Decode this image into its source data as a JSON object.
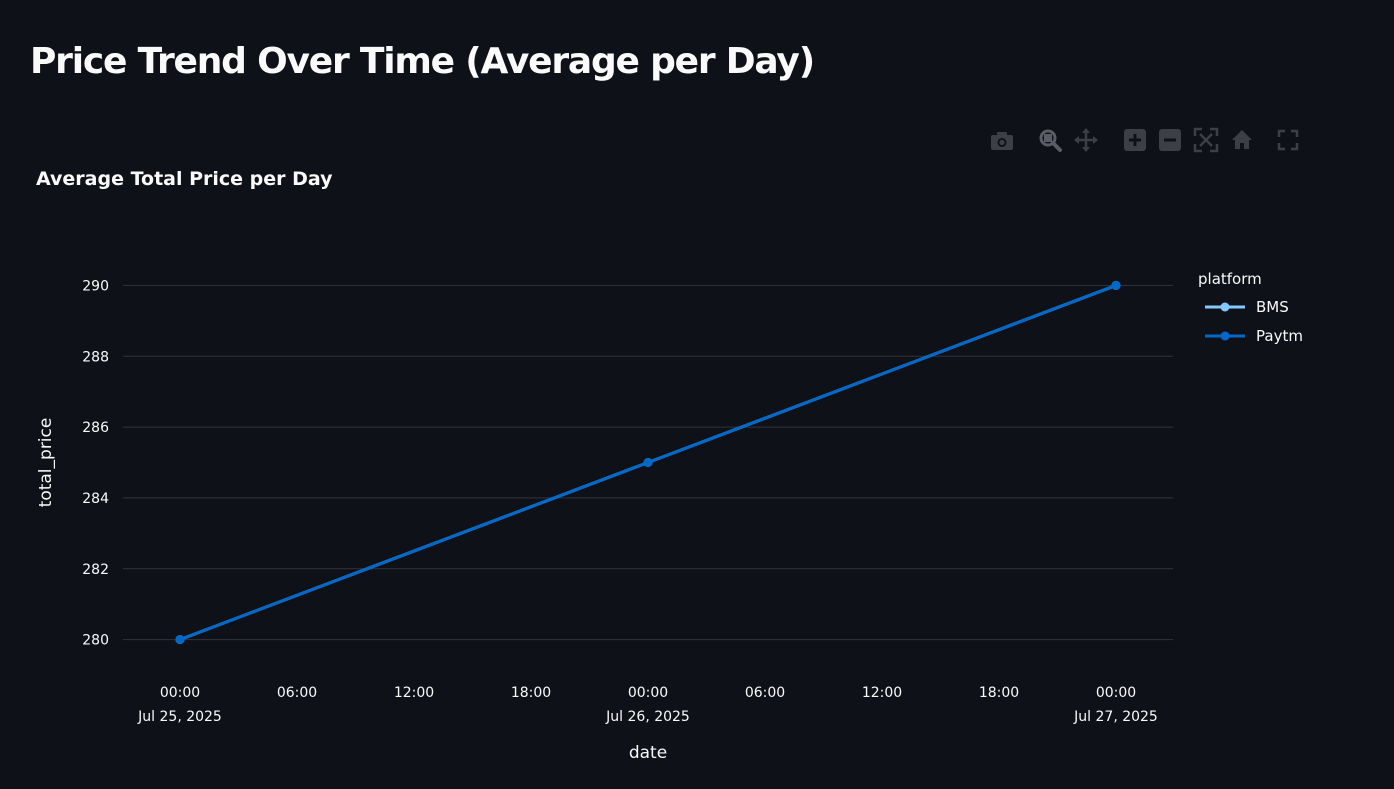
{
  "page": {
    "title": "Price Trend Over Time (Average per Day)"
  },
  "modebar": {
    "icons": [
      "camera-icon",
      "zoom-icon",
      "pan-icon",
      "zoom-in-icon",
      "zoom-out-icon",
      "autoscale-icon",
      "home-icon",
      "fullscreen-icon"
    ]
  },
  "chart_data": {
    "type": "line",
    "title": "Average Total Price per Day",
    "xlabel": "date",
    "ylabel": "total_price",
    "x": [
      "2025-07-25 00:00",
      "2025-07-26 00:00",
      "2025-07-27 00:00"
    ],
    "x_range": [
      "2025-07-25 00:00",
      "2025-07-27 00:00"
    ],
    "ylim": [
      279.0,
      291.0
    ],
    "y_ticks": [
      280,
      282,
      284,
      286,
      288,
      290
    ],
    "x_ticks": [
      {
        "value": "2025-07-25 00:00",
        "label": "00:00",
        "sublabel": "Jul 25, 2025"
      },
      {
        "value": "2025-07-25 06:00",
        "label": "06:00",
        "sublabel": ""
      },
      {
        "value": "2025-07-25 12:00",
        "label": "12:00",
        "sublabel": ""
      },
      {
        "value": "2025-07-25 18:00",
        "label": "18:00",
        "sublabel": ""
      },
      {
        "value": "2025-07-26 00:00",
        "label": "00:00",
        "sublabel": "Jul 26, 2025"
      },
      {
        "value": "2025-07-26 06:00",
        "label": "06:00",
        "sublabel": ""
      },
      {
        "value": "2025-07-26 12:00",
        "label": "12:00",
        "sublabel": ""
      },
      {
        "value": "2025-07-26 18:00",
        "label": "18:00",
        "sublabel": ""
      },
      {
        "value": "2025-07-27 00:00",
        "label": "00:00",
        "sublabel": "Jul 27, 2025"
      }
    ],
    "legend": {
      "title": "platform",
      "position": "right"
    },
    "grid": true,
    "series": [
      {
        "name": "BMS",
        "color": "#83c9ff",
        "values": [
          280,
          285,
          290
        ]
      },
      {
        "name": "Paytm",
        "color": "#0068c9",
        "values": [
          280,
          285,
          290
        ]
      }
    ]
  }
}
